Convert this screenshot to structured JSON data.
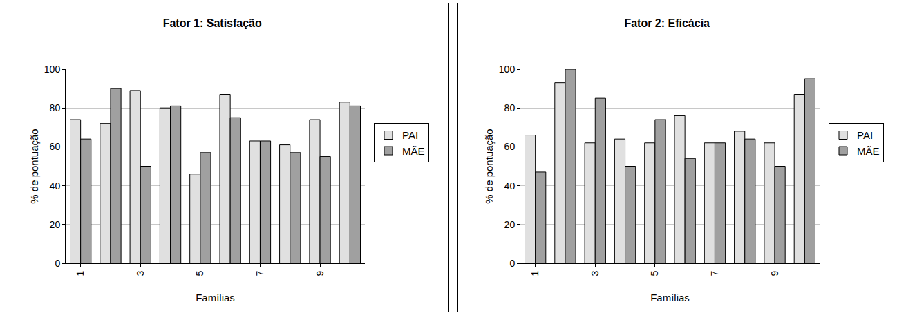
{
  "chart_data": [
    {
      "type": "bar",
      "title": "Fator 1: Satisfação",
      "x_label": "Famílias",
      "y_label": "% de pontuação",
      "categories": [
        "1",
        null,
        "3",
        null,
        "5",
        null,
        "7",
        null,
        "9",
        null
      ],
      "series": [
        {
          "name": "PAI",
          "color": "#e0e0e0",
          "values": [
            74,
            72,
            89,
            80,
            46,
            87,
            63,
            61,
            74,
            83
          ]
        },
        {
          "name": "MÃE",
          "color": "#a0a0a0",
          "values": [
            64,
            90,
            50,
            81,
            57,
            75,
            63,
            57,
            55,
            81
          ]
        }
      ],
      "ylim": [
        0,
        100
      ],
      "yticks": [
        0,
        20,
        40,
        60,
        80,
        100
      ],
      "grid": true,
      "legend": "right"
    },
    {
      "type": "bar",
      "title": "Fator 2: Eficácia",
      "x_label": "Famílias",
      "y_label": "% de pontuação",
      "categories": [
        "1",
        null,
        "3",
        null,
        "5",
        null,
        "7",
        null,
        "9",
        null
      ],
      "series": [
        {
          "name": "PAI",
          "color": "#e0e0e0",
          "values": [
            66,
            93,
            62,
            64,
            62,
            76,
            62,
            68,
            62,
            87
          ]
        },
        {
          "name": "MÃE",
          "color": "#a0a0a0",
          "values": [
            47,
            100,
            85,
            50,
            74,
            54,
            62,
            64,
            50,
            95
          ]
        }
      ],
      "ylim": [
        0,
        100
      ],
      "yticks": [
        0,
        20,
        40,
        60,
        80,
        100
      ],
      "grid": true,
      "legend": "right"
    }
  ]
}
